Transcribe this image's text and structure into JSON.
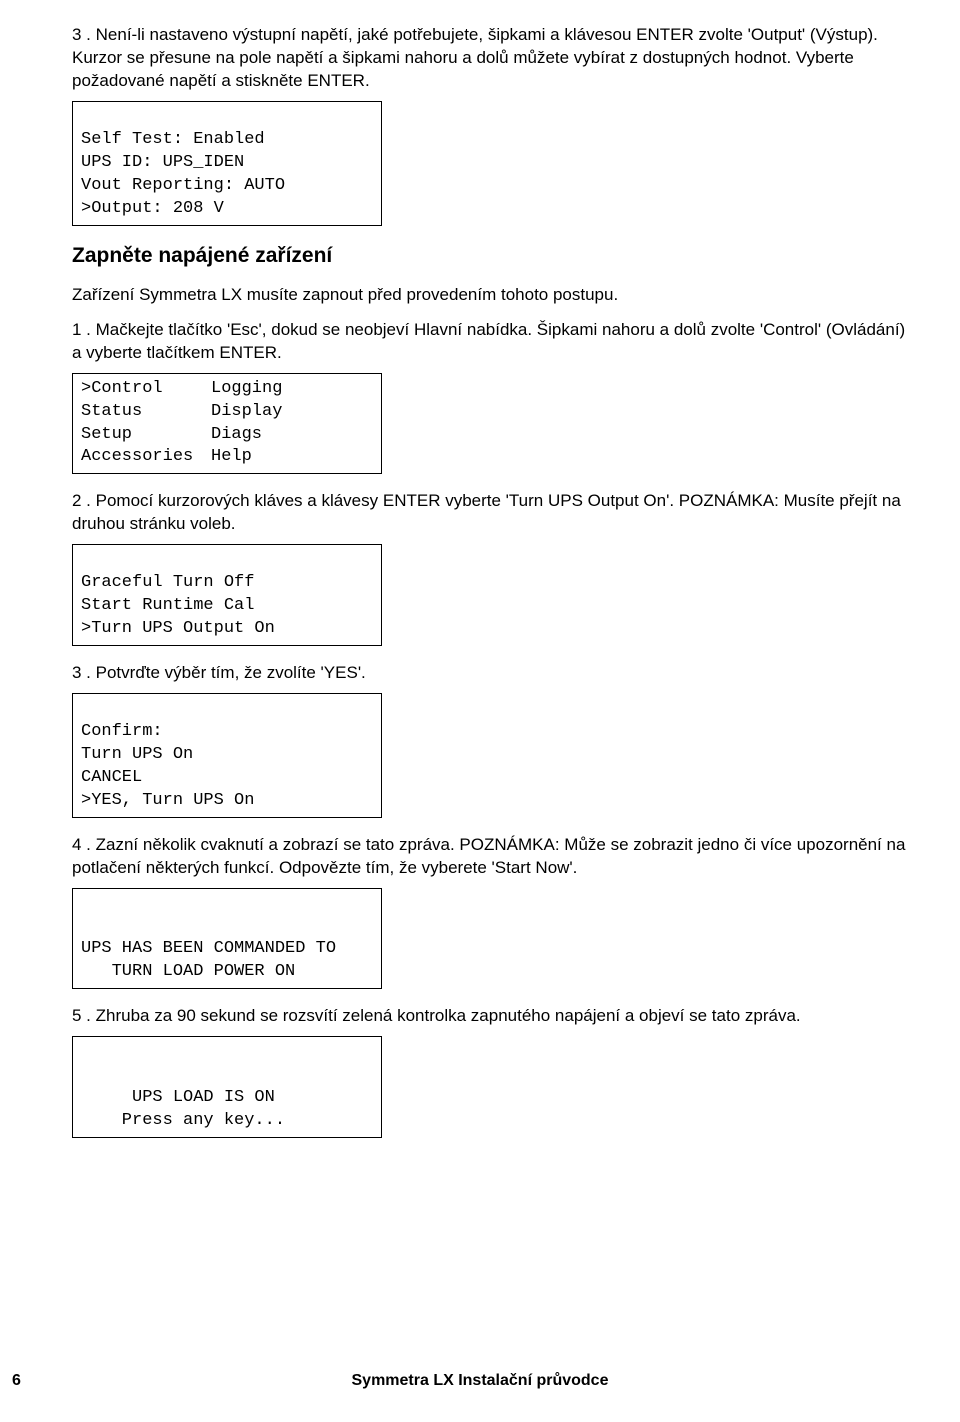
{
  "step3": {
    "num": "3 .",
    "text": "Není-li nastaveno výstupní napětí, jaké potřebujete, šipkami a klávesou ENTER zvolte 'Output' (Výstup). Kurzor se přesune na pole napětí a šipkami nahoru a dolů můžete vybírat z dostupných hodnot. Vyberte požadované napětí a stiskněte ENTER."
  },
  "lcd1": {
    "l1": "Self Test: Enabled",
    "l2": "UPS ID: UPS_IDEN",
    "l3": "Vout Reporting: AUTO",
    "l4": ">Output: 208 V"
  },
  "section_heading": "Zapněte napájené zařízení",
  "section_intro": "Zařízení Symmetra LX musíte zapnout před provedením tohoto postupu.",
  "b_step1": {
    "num": "1 .",
    "text": "Mačkejte tlačítko 'Esc', dokud se neobjeví Hlavní nabídka. Šipkami nahoru a dolů zvolte 'Control' (Ovládání) a vyberte tlačítkem ENTER."
  },
  "lcd2": {
    "r1c1": ">Control",
    "r1c2": "Logging",
    "r2c1": "Status",
    "r2c2": "Display",
    "r3c1": "Setup",
    "r3c2": "Diags",
    "r4c1": "Accessories",
    "r4c2": "Help"
  },
  "b_step2": {
    "num": "2 .",
    "text": "Pomocí kurzorových kláves a klávesy ENTER vyberte 'Turn UPS Output On'. POZNÁMKA: Musíte přejít na druhou stránku voleb."
  },
  "lcd3": {
    "l1": "Graceful Turn Off",
    "l2": "Start Runtime Cal",
    "l3": ">Turn UPS Output On"
  },
  "b_step3": {
    "num": "3 .",
    "text": "Potvrďte výběr tím, že zvolíte 'YES'."
  },
  "lcd4": {
    "l1": "Confirm:",
    "l2": "Turn UPS On",
    "l3": "CANCEL",
    "l4": ">YES, Turn UPS On"
  },
  "b_step4": {
    "num": "4 .",
    "text": "Zazní několik cvaknutí a zobrazí se tato zpráva. POZNÁMKA: Může se zobrazit jedno či více upozornění na potlačení některých funkcí. Odpovězte tím, že vyberete 'Start Now'."
  },
  "lcd5": {
    "l1": "",
    "l2": "UPS HAS BEEN COMMANDED TO",
    "l3": "   TURN LOAD POWER ON"
  },
  "b_step5": {
    "num": "5 .",
    "text": "Zhruba za 90 sekund se rozsvítí zelená kontrolka zapnutého napájení a objeví se tato zpráva."
  },
  "lcd6": {
    "l1": "",
    "l2": "     UPS LOAD IS ON",
    "l3": "    Press any key..."
  },
  "footer": "Symmetra LX Instalační průvodce",
  "page": "6"
}
